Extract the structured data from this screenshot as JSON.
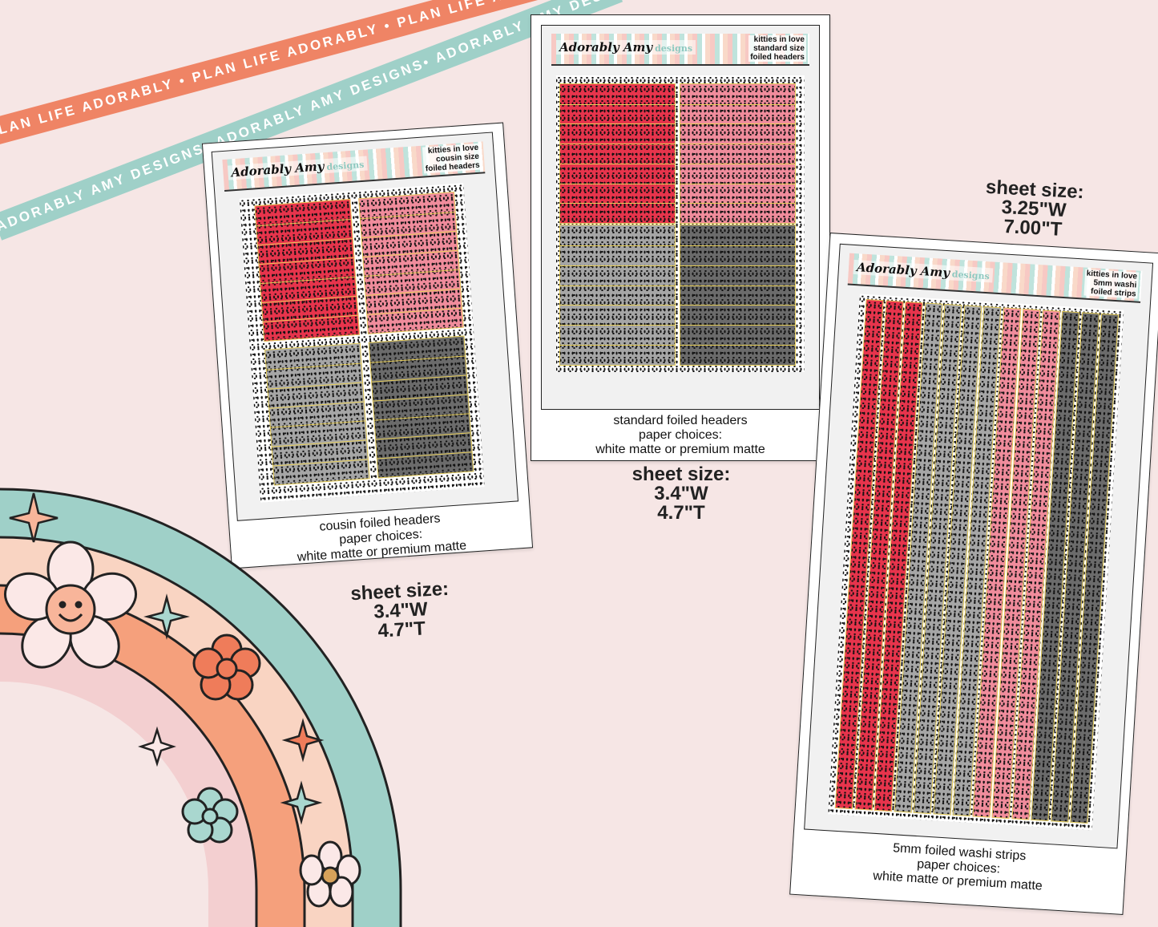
{
  "ribbons": {
    "top": "PLAN LIFE ADORABLY • PLAN LIFE ADORABLY • PLAN LIFE ADORABLY",
    "bottom": "ADORABLY AMY DESIGNS• ADORABLY AMY DESIGNS• ADORABLY AMY DESIGNS•"
  },
  "brand": {
    "name": "Adorably Amy",
    "suffix": "designs"
  },
  "sheets": [
    {
      "tag": [
        "kitties in love",
        "cousin size",
        "foiled headers"
      ],
      "caption": [
        "cousin foiled headers",
        "paper choices:",
        "white matte or premium matte"
      ],
      "size": [
        "sheet size:",
        "3.4\"W",
        "4.7\"T"
      ]
    },
    {
      "tag": [
        "kitties in love",
        "standard size",
        "foiled headers"
      ],
      "caption": [
        "standard foiled headers",
        "paper choices:",
        "white matte or premium matte"
      ],
      "size": [
        "sheet size:",
        "3.4\"W",
        "4.7\"T"
      ]
    },
    {
      "tag": [
        "kitties in love",
        "5mm washi",
        "foiled strips"
      ],
      "caption": [
        "5mm foiled washi strips",
        "paper choices:",
        "white matte or premium matte"
      ],
      "size": [
        "sheet size:",
        "3.25\"W",
        "7.00\"T"
      ]
    }
  ],
  "colors": {
    "background": "#f6e6e5",
    "red": "#e7344c",
    "pink": "#f08c9c",
    "light_gray": "#a6a6a6",
    "dark_gray": "#6b6b6b",
    "foil": "#e8cf5a"
  },
  "icons": [
    "flower-icon",
    "smiley-flower-icon",
    "sparkle-icon",
    "rainbow"
  ]
}
